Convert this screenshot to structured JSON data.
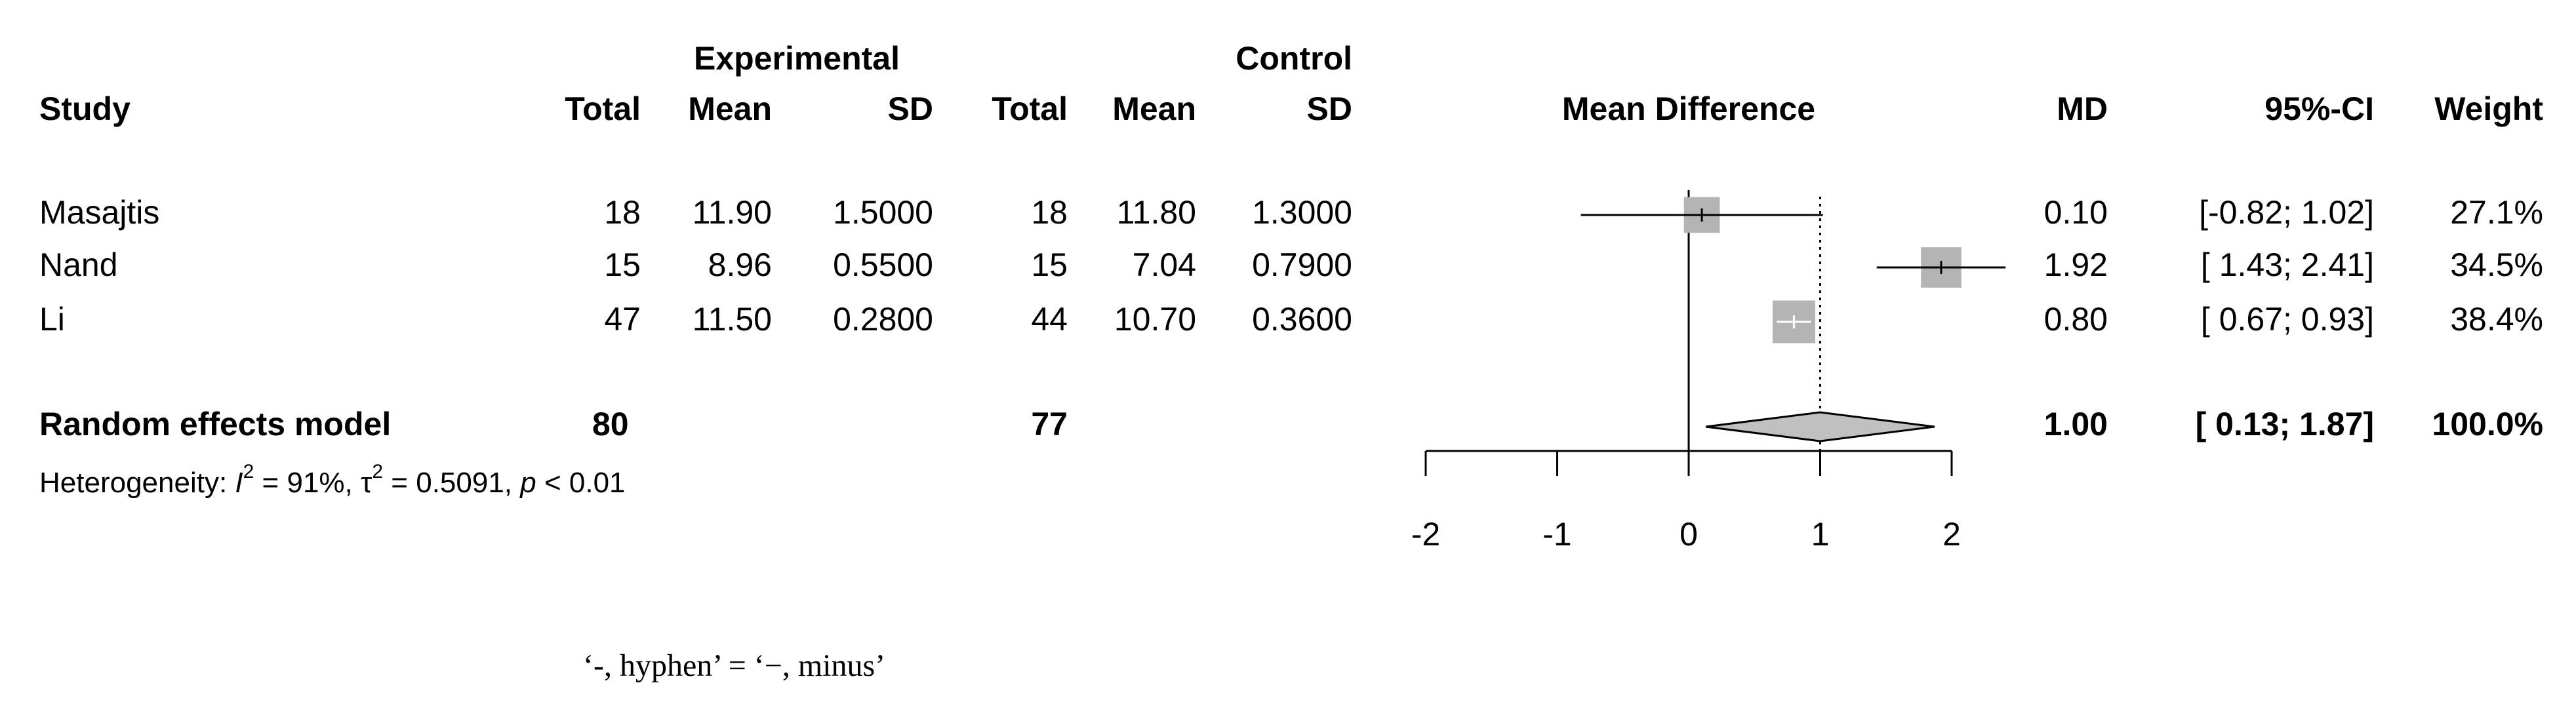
{
  "chart_data": {
    "type": "forest",
    "groups": [
      "Experimental",
      "Control"
    ],
    "columns": [
      "Study",
      "Total",
      "Mean",
      "SD",
      "Total",
      "Mean",
      "SD",
      "Mean Difference",
      "MD",
      "95%-CI",
      "Weight"
    ],
    "studies": [
      "Masajtis",
      "Nand",
      "Li"
    ],
    "table": [
      [
        "18",
        "11.90",
        "1.5000",
        "18",
        "11.80",
        "1.3000"
      ],
      [
        "15",
        "8.96",
        "0.5500",
        "15",
        "7.04",
        "0.7900"
      ],
      [
        "47",
        "11.50",
        "0.2800",
        "44",
        "10.70",
        "0.3600"
      ]
    ],
    "values": [
      0.1,
      1.92,
      0.8
    ],
    "value_labels": [
      "0.10",
      "1.92",
      "0.80"
    ],
    "ci_lower": [
      -0.82,
      1.43,
      0.67
    ],
    "ci_upper": [
      1.02,
      2.41,
      0.93
    ],
    "ci_labels": [
      "[-0.82; 1.02]",
      "[ 1.43; 2.41]",
      "[ 0.67; 0.93]"
    ],
    "weights": [
      27.1,
      34.5,
      38.4
    ],
    "weight_labels": [
      "27.1%",
      "34.5%",
      "38.4%"
    ],
    "pooled": {
      "name": "Random effects model",
      "exp_total": "80",
      "ctrl_total": "77",
      "value": 1.0,
      "value_label": "1.00",
      "ci_lower": 0.13,
      "ci_upper": 1.87,
      "ci_label": "[ 0.13; 1.87]",
      "weight": 100,
      "weight_label": "100.0%"
    },
    "heterogeneity": [
      "Heterogeneity: ",
      "I",
      "2",
      " = 91%, ",
      "τ",
      "2",
      " = 0.5091, ",
      "p",
      " < 0.01"
    ],
    "xlim": [
      -2,
      2
    ],
    "xticks": [
      -2,
      -1,
      0,
      1,
      2
    ],
    "square_color": "#b4b4b4",
    "diamond_color": "#c0c0c0"
  },
  "caption": "‘-, hyphen’ = ‘−, minus’"
}
